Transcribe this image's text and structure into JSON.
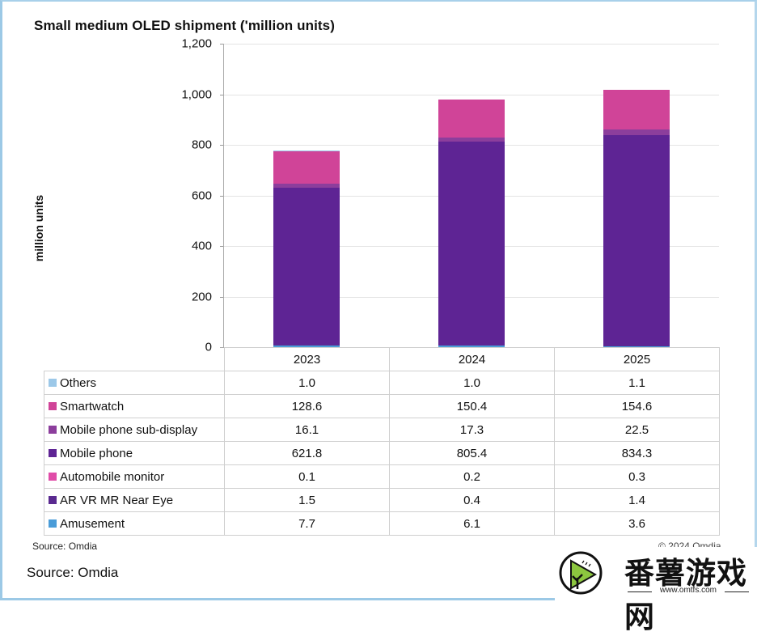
{
  "chart_data": {
    "type": "bar",
    "stacked": true,
    "title": "Small medium OLED shipment ('million units)",
    "xlabel": "",
    "ylabel": "million units",
    "ylim": [
      0,
      1200
    ],
    "yticks": [
      "1,200",
      "1,000",
      "800",
      "600",
      "400",
      "200",
      "0"
    ],
    "grid": true,
    "legend_position": "data-table-left",
    "categories": [
      "2023",
      "2024",
      "2025"
    ],
    "series": [
      {
        "name": "Others",
        "color": "#9cc8e8",
        "values": [
          1.0,
          1.0,
          1.1
        ],
        "labels": [
          "1.0",
          "1.0",
          "1.1"
        ]
      },
      {
        "name": "Smartwatch",
        "color": "#d04498",
        "values": [
          128.6,
          150.4,
          154.6
        ],
        "labels": [
          "128.6",
          "150.4",
          "154.6"
        ]
      },
      {
        "name": "Mobile phone sub-display",
        "color": "#8c3e9c",
        "values": [
          16.1,
          17.3,
          22.5
        ],
        "labels": [
          "16.1",
          "17.3",
          "22.5"
        ]
      },
      {
        "name": "Mobile phone",
        "color": "#5e2494",
        "values": [
          621.8,
          805.4,
          834.3
        ],
        "labels": [
          "621.8",
          "805.4",
          "834.3"
        ]
      },
      {
        "name": "Automobile monitor",
        "color": "#e04ca8",
        "values": [
          0.1,
          0.2,
          0.3
        ],
        "labels": [
          "0.1",
          "0.2",
          "0.3"
        ]
      },
      {
        "name": "AR VR MR Near Eye",
        "color": "#5a2a90",
        "values": [
          1.5,
          0.4,
          1.4
        ],
        "labels": [
          "1.5",
          "0.4",
          "1.4"
        ]
      },
      {
        "name": "Amusement",
        "color": "#4a9cd8",
        "values": [
          7.7,
          6.1,
          3.6
        ],
        "labels": [
          "7.7",
          "6.1",
          "3.6"
        ]
      }
    ]
  },
  "footer": {
    "source_small": "Source: Omdia",
    "copyright": "© 2024 Omdia",
    "source_large": "Source: Omdia"
  },
  "watermark": {
    "text": "番薯游戏网",
    "url": "www.omtfs.com"
  }
}
